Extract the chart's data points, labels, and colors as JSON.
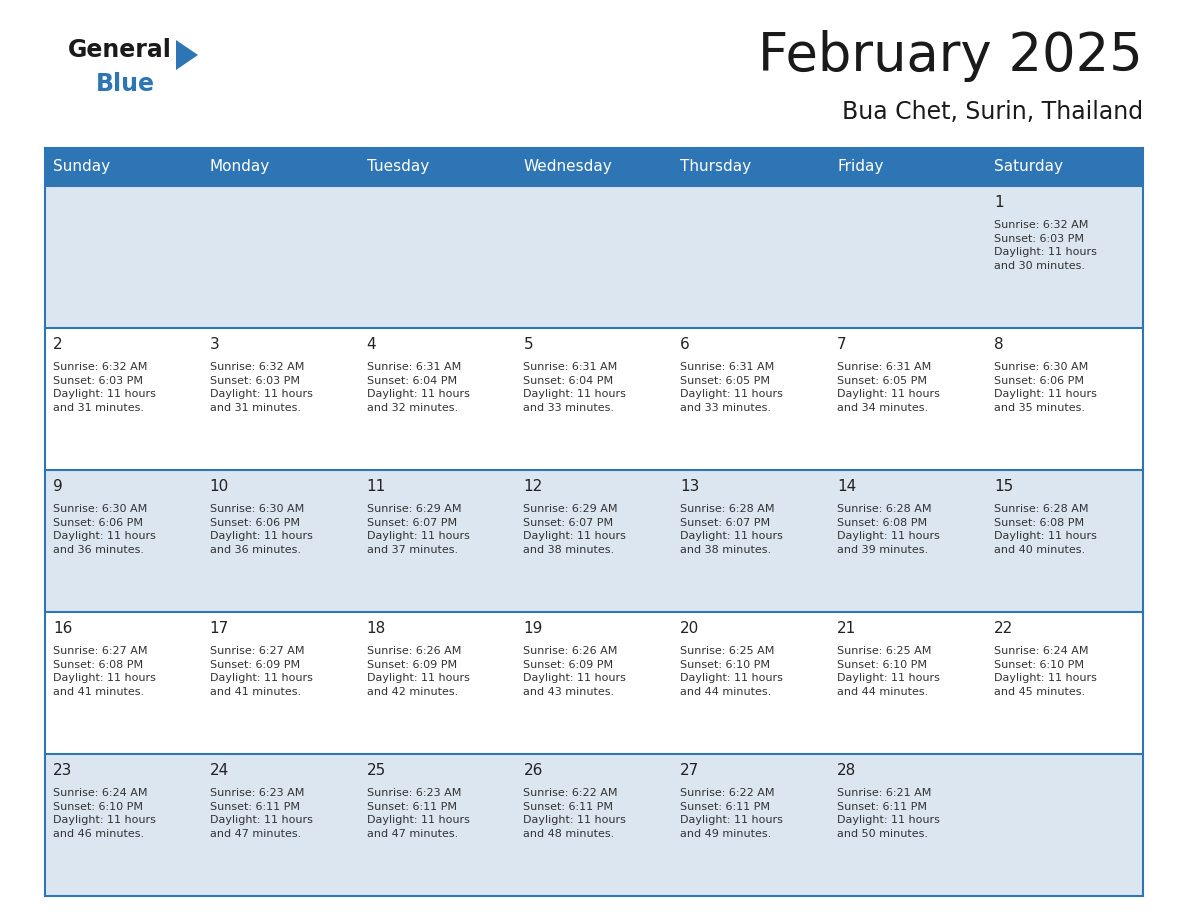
{
  "title": "February 2025",
  "subtitle": "Bua Chet, Surin, Thailand",
  "header_bg_color": "#2e75b6",
  "header_text_color": "#ffffff",
  "cell_bg_light": "#dce6f1",
  "cell_bg_white": "#ffffff",
  "days_of_week": [
    "Sunday",
    "Monday",
    "Tuesday",
    "Wednesday",
    "Thursday",
    "Friday",
    "Saturday"
  ],
  "bg_color": "#ffffff",
  "grid_line_color": "#2e75b6",
  "day_num_color": "#222222",
  "cell_text_color": "#333333",
  "calendar": [
    [
      null,
      null,
      null,
      null,
      null,
      null,
      1
    ],
    [
      2,
      3,
      4,
      5,
      6,
      7,
      8
    ],
    [
      9,
      10,
      11,
      12,
      13,
      14,
      15
    ],
    [
      16,
      17,
      18,
      19,
      20,
      21,
      22
    ],
    [
      23,
      24,
      25,
      26,
      27,
      28,
      null
    ]
  ],
  "sun_data": {
    "1": {
      "rise": "6:32 AM",
      "set": "6:03 PM",
      "daylight": "11 hours and 30 minutes."
    },
    "2": {
      "rise": "6:32 AM",
      "set": "6:03 PM",
      "daylight": "11 hours and 31 minutes."
    },
    "3": {
      "rise": "6:32 AM",
      "set": "6:03 PM",
      "daylight": "11 hours and 31 minutes."
    },
    "4": {
      "rise": "6:31 AM",
      "set": "6:04 PM",
      "daylight": "11 hours and 32 minutes."
    },
    "5": {
      "rise": "6:31 AM",
      "set": "6:04 PM",
      "daylight": "11 hours and 33 minutes."
    },
    "6": {
      "rise": "6:31 AM",
      "set": "6:05 PM",
      "daylight": "11 hours and 33 minutes."
    },
    "7": {
      "rise": "6:31 AM",
      "set": "6:05 PM",
      "daylight": "11 hours and 34 minutes."
    },
    "8": {
      "rise": "6:30 AM",
      "set": "6:06 PM",
      "daylight": "11 hours and 35 minutes."
    },
    "9": {
      "rise": "6:30 AM",
      "set": "6:06 PM",
      "daylight": "11 hours and 36 minutes."
    },
    "10": {
      "rise": "6:30 AM",
      "set": "6:06 PM",
      "daylight": "11 hours and 36 minutes."
    },
    "11": {
      "rise": "6:29 AM",
      "set": "6:07 PM",
      "daylight": "11 hours and 37 minutes."
    },
    "12": {
      "rise": "6:29 AM",
      "set": "6:07 PM",
      "daylight": "11 hours and 38 minutes."
    },
    "13": {
      "rise": "6:28 AM",
      "set": "6:07 PM",
      "daylight": "11 hours and 38 minutes."
    },
    "14": {
      "rise": "6:28 AM",
      "set": "6:08 PM",
      "daylight": "11 hours and 39 minutes."
    },
    "15": {
      "rise": "6:28 AM",
      "set": "6:08 PM",
      "daylight": "11 hours and 40 minutes."
    },
    "16": {
      "rise": "6:27 AM",
      "set": "6:08 PM",
      "daylight": "11 hours and 41 minutes."
    },
    "17": {
      "rise": "6:27 AM",
      "set": "6:09 PM",
      "daylight": "11 hours and 41 minutes."
    },
    "18": {
      "rise": "6:26 AM",
      "set": "6:09 PM",
      "daylight": "11 hours and 42 minutes."
    },
    "19": {
      "rise": "6:26 AM",
      "set": "6:09 PM",
      "daylight": "11 hours and 43 minutes."
    },
    "20": {
      "rise": "6:25 AM",
      "set": "6:10 PM",
      "daylight": "11 hours and 44 minutes."
    },
    "21": {
      "rise": "6:25 AM",
      "set": "6:10 PM",
      "daylight": "11 hours and 44 minutes."
    },
    "22": {
      "rise": "6:24 AM",
      "set": "6:10 PM",
      "daylight": "11 hours and 45 minutes."
    },
    "23": {
      "rise": "6:24 AM",
      "set": "6:10 PM",
      "daylight": "11 hours and 46 minutes."
    },
    "24": {
      "rise": "6:23 AM",
      "set": "6:11 PM",
      "daylight": "11 hours and 47 minutes."
    },
    "25": {
      "rise": "6:23 AM",
      "set": "6:11 PM",
      "daylight": "11 hours and 47 minutes."
    },
    "26": {
      "rise": "6:22 AM",
      "set": "6:11 PM",
      "daylight": "11 hours and 48 minutes."
    },
    "27": {
      "rise": "6:22 AM",
      "set": "6:11 PM",
      "daylight": "11 hours and 49 minutes."
    },
    "28": {
      "rise": "6:21 AM",
      "set": "6:11 PM",
      "daylight": "11 hours and 50 minutes."
    }
  },
  "logo_general_color": "#1a1a1a",
  "logo_blue_color": "#2e75b6",
  "logo_triangle_color": "#2e75b6",
  "title_fontsize": 38,
  "subtitle_fontsize": 17,
  "header_fontsize": 11,
  "daynum_fontsize": 11,
  "cell_fontsize": 8
}
